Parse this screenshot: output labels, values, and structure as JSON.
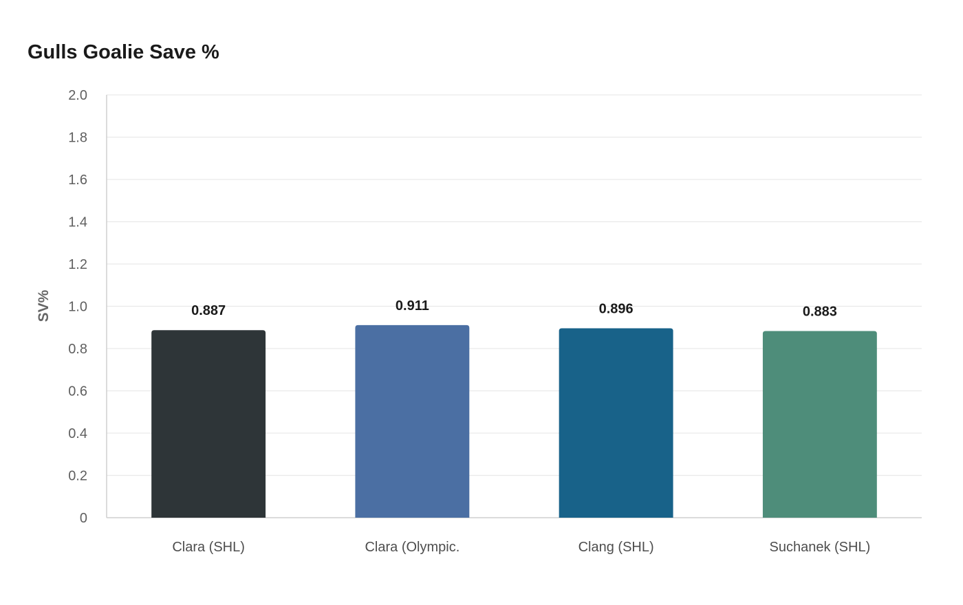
{
  "chart_data": {
    "type": "bar",
    "title": "Gulls Goalie Save %",
    "xlabel": "",
    "ylabel": "SV%",
    "categories": [
      "Clara (SHL)",
      "Clara (Olympic.",
      "Clang (SHL)",
      "Suchanek (SHL)"
    ],
    "values": [
      0.887,
      0.911,
      0.896,
      0.883
    ],
    "value_labels": [
      "0.887",
      "0.911",
      "0.896",
      "0.883"
    ],
    "ylim": [
      0,
      2.0
    ],
    "yticks": [
      0,
      0.2,
      0.4,
      0.6,
      0.8,
      1.0,
      1.2,
      1.4,
      1.6,
      1.8,
      2.0
    ],
    "ytick_labels": [
      "0",
      "0.2",
      "0.4",
      "0.6",
      "0.8",
      "1.0",
      "1.2",
      "1.4",
      "1.6",
      "1.8",
      "2.0"
    ],
    "colors": [
      "#2e3538",
      "#4b6fa3",
      "#186289",
      "#4e8d7a"
    ],
    "grid": true,
    "legend": "none"
  }
}
